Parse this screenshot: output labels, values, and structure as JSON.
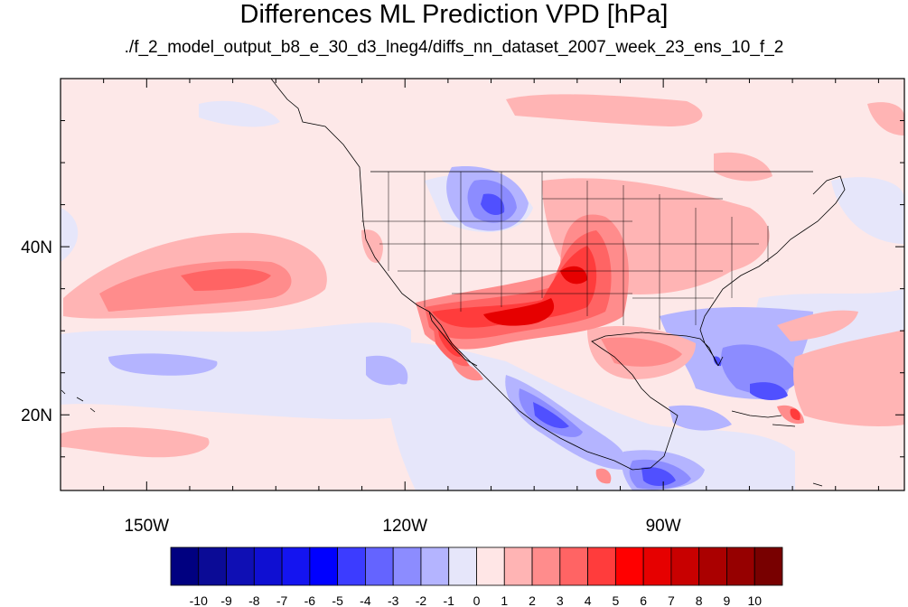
{
  "title": "Differences ML Prediction VPD [hPa]",
  "subtitle": "./f_2_model_output_b8_e_30_d3_lneg4/diffs_nn_dataset_2007_week_23_ens_10_f_2",
  "lon_ticks": [
    {
      "value": -150,
      "label": "150W"
    },
    {
      "value": -120,
      "label": "120W"
    },
    {
      "value": -90,
      "label": "90W"
    }
  ],
  "lat_ticks": [
    {
      "value": 40,
      "label": "40N"
    },
    {
      "value": 20,
      "label": "20N"
    }
  ],
  "map_extent": {
    "lon_min": -160,
    "lon_max": -62,
    "lat_min": 11,
    "lat_max": 60
  },
  "colorbar": {
    "labels": [
      "-10",
      "-9",
      "-8",
      "-7",
      "-6",
      "-5",
      "-4",
      "-3",
      "-2",
      "-1",
      "0",
      "1",
      "2",
      "3",
      "4",
      "5",
      "6",
      "7",
      "8",
      "9",
      "10"
    ],
    "colors": [
      "#000080",
      "#0b0b96",
      "#0f0fb4",
      "#0f0fd2",
      "#1414f0",
      "#0000ff",
      "#3c3cff",
      "#6464ff",
      "#8c8cff",
      "#b4b4ff",
      "#e6e6fa",
      "#ffe6e6",
      "#ffb4b4",
      "#ff8c8c",
      "#ff6464",
      "#ff3c3c",
      "#ff0000",
      "#e60000",
      "#c80000",
      "#aa0000",
      "#960000",
      "#780000"
    ]
  },
  "colors": {
    "ocean_background": "#fde8e8",
    "coastline": "#000000"
  }
}
